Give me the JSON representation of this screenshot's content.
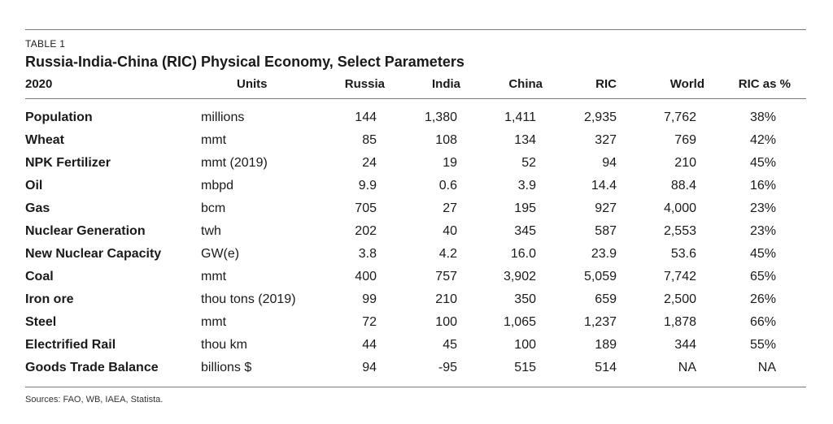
{
  "table": {
    "label": "TABLE 1",
    "title": "Russia-India-China (RIC) Physical Economy, Select Parameters",
    "headers": {
      "year": "2020",
      "units": "Units",
      "russia": "Russia",
      "india": "India",
      "china": "China",
      "ric": "RIC",
      "world": "World",
      "ricpct": "RIC as %"
    },
    "rows": [
      {
        "name": "Population",
        "unit": "millions",
        "russia": "144",
        "india": "1,380",
        "china": "1,411",
        "ric": "2,935",
        "world": "7,762",
        "ricpct": "38%"
      },
      {
        "name": "Wheat",
        "unit": "mmt",
        "russia": "85",
        "india": "108",
        "china": "134",
        "ric": "327",
        "world": "769",
        "ricpct": "42%"
      },
      {
        "name": "NPK Fertilizer",
        "unit": "mmt (2019)",
        "russia": "24",
        "india": "19",
        "china": "52",
        "ric": "94",
        "world": "210",
        "ricpct": "45%"
      },
      {
        "name": "Oil",
        "unit": "mbpd",
        "russia": "9.9",
        "india": "0.6",
        "china": "3.9",
        "ric": "14.4",
        "world": "88.4",
        "ricpct": "16%"
      },
      {
        "name": "Gas",
        "unit": "bcm",
        "russia": "705",
        "india": "27",
        "china": "195",
        "ric": "927",
        "world": "4,000",
        "ricpct": "23%"
      },
      {
        "name": "Nuclear Generation",
        "unit": "twh",
        "russia": "202",
        "india": "40",
        "china": "345",
        "ric": "587",
        "world": "2,553",
        "ricpct": "23%"
      },
      {
        "name": "New Nuclear Capacity",
        "unit": "GW(e)",
        "russia": "3.8",
        "india": "4.2",
        "china": "16.0",
        "ric": "23.9",
        "world": "53.6",
        "ricpct": "45%"
      },
      {
        "name": "Coal",
        "unit": "mmt",
        "russia": "400",
        "india": "757",
        "china": "3,902",
        "ric": "5,059",
        "world": "7,742",
        "ricpct": "65%"
      },
      {
        "name": "Iron ore",
        "unit": "thou tons (2019)",
        "russia": "99",
        "india": "210",
        "china": "350",
        "ric": "659",
        "world": "2,500",
        "ricpct": "26%"
      },
      {
        "name": "Steel",
        "unit": "mmt",
        "russia": "72",
        "india": "100",
        "china": "1,065",
        "ric": "1,237",
        "world": "1,878",
        "ricpct": "66%"
      },
      {
        "name": "Electrified Rail",
        "unit": "thou km",
        "russia": "44",
        "india": "45",
        "china": "100",
        "ric": "189",
        "world": "344",
        "ricpct": "55%"
      },
      {
        "name": "Goods Trade Balance",
        "unit": "billions $",
        "russia": "94",
        "india": "-95",
        "china": "515",
        "ric": "514",
        "world": "NA",
        "ricpct": "NA"
      }
    ],
    "source": "Sources: FAO, WB, IAEA, Statista."
  }
}
